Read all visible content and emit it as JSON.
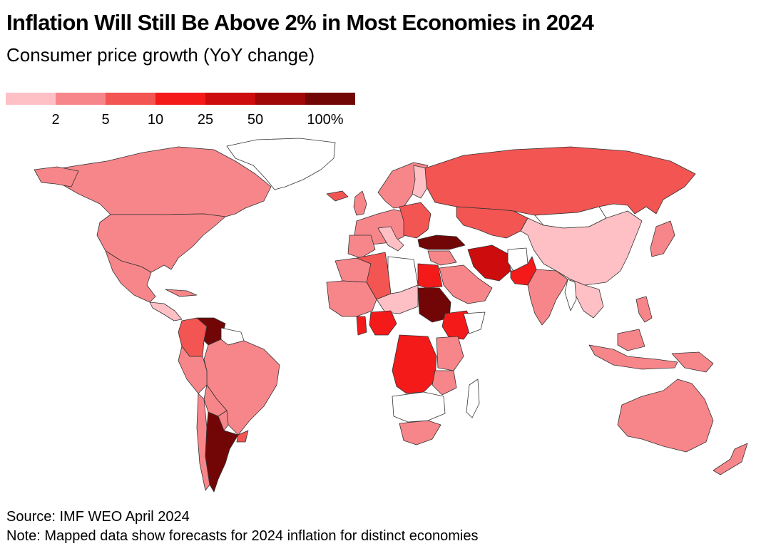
{
  "title": "Inflation Will Still Be Above 2% in Most Economies in 2024",
  "subtitle": "Consumer price growth (YoY change)",
  "legend": {
    "colors": [
      "#ffc0c5",
      "#f7868a",
      "#f25552",
      "#f41a1a",
      "#cd0c0d",
      "#a00707",
      "#720606"
    ],
    "ticks": [
      "2",
      "5",
      "10",
      "25",
      "50",
      "100%"
    ]
  },
  "footer": {
    "source": "Source: IMF WEO April 2024",
    "note": "Note: Mapped data show forecasts for 2024 inflation for distinct economies"
  },
  "map": {
    "colors": {
      "no_data": "#ffffff",
      "bin_lt2": "#ffc0c5",
      "bin_2_5": "#f7868a",
      "bin_5_10": "#f25552",
      "bin_10_25": "#f41a1a",
      "bin_25_50": "#cd0c0d",
      "bin_50_100": "#a00707",
      "bin_gt100": "#720606"
    }
  }
}
